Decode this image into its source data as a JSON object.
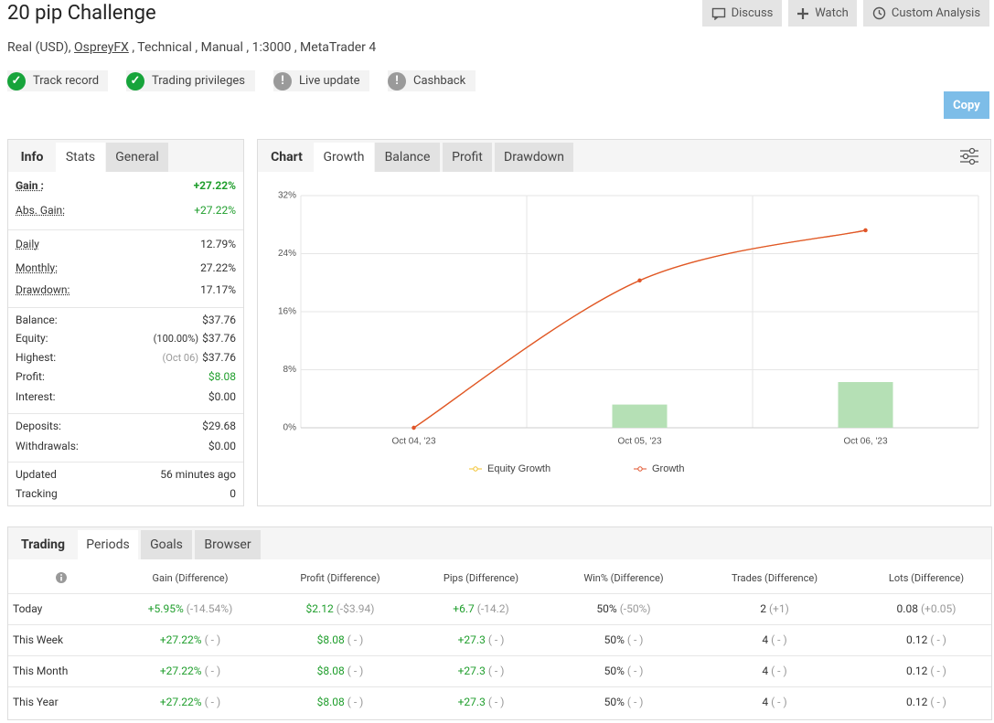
{
  "header": {
    "title": "20 pip Challenge",
    "account": "Real (USD),",
    "broker": "OspreyFX",
    "details": ", Technical , Manual , 1:3000 , MetaTrader 4"
  },
  "actions": [
    "Discuss",
    "Watch",
    "Custom Analysis"
  ],
  "badges": [
    "Track record",
    "Trading privileges",
    "Live update",
    "Cashback"
  ],
  "copy_button": "Copy",
  "info_panel": {
    "tabs": [
      "Info",
      "Stats",
      "General"
    ],
    "groups": [
      [
        {
          "label": "Gain :",
          "value": "+27.22%"
        },
        {
          "label": "Abs. Gain:",
          "value": "+27.22%"
        }
      ],
      [
        {
          "label": "Daily",
          "value": "12.79%"
        },
        {
          "label": "Monthly:",
          "value": "27.22%"
        },
        {
          "label": "Drawdown:",
          "value": "17.17%"
        }
      ],
      [
        {
          "label": "Balance:",
          "value": "$37.76"
        },
        {
          "label": "Equity:",
          "note": "(100.00%)",
          "value": "$37.76"
        },
        {
          "label": "Highest:",
          "note": "(Oct 06)",
          "value": "$37.76"
        },
        {
          "label": "Profit:",
          "value": "$8.08"
        },
        {
          "label": "Interest:",
          "value": "$0.00"
        }
      ],
      [
        {
          "label": "Deposits:",
          "value": "$29.68"
        },
        {
          "label": "Withdrawals:",
          "value": "$0.00"
        }
      ],
      [
        {
          "label": "Updated",
          "value": "56 minutes ago"
        },
        {
          "label": "Tracking",
          "value": "0"
        }
      ]
    ]
  },
  "chart_panel": {
    "tabs": [
      "Chart",
      "Growth",
      "Balance",
      "Profit",
      "Drawdown"
    ]
  },
  "chart_data": {
    "type": "line",
    "categories": [
      "Oct 04, '23",
      "Oct 05, '23",
      "Oct 06, '23"
    ],
    "series": [
      {
        "name": "Equity Growth",
        "color": "#f2c12e",
        "values": [
          0,
          20.3,
          27.22
        ]
      },
      {
        "name": "Growth",
        "color": "#e0532c",
        "values": [
          0,
          20.3,
          27.22
        ]
      }
    ],
    "bars": {
      "color": "#b5e0b5",
      "values": [
        null,
        3.2,
        6.3
      ]
    },
    "ylim": [
      0,
      32
    ],
    "yticks": [
      {
        "value": 0,
        "label": "0%"
      },
      {
        "value": 8,
        "label": "8%"
      },
      {
        "value": 16,
        "label": "16%"
      },
      {
        "value": 24,
        "label": "24%"
      },
      {
        "value": 32,
        "label": "32%"
      }
    ],
    "grid": true
  },
  "periods": {
    "tabs": [
      "Trading",
      "Periods",
      "Goals",
      "Browser"
    ],
    "columns": [
      "Gain (Difference)",
      "Profit (Difference)",
      "Pips (Difference)",
      "Win% (Difference)",
      "Trades (Difference)",
      "Lots (Difference)"
    ],
    "rows": [
      {
        "label": "Today",
        "cells": [
          [
            "+5.95%",
            "(-14.54%)"
          ],
          [
            "$2.12",
            "(-$3.94)"
          ],
          [
            "+6.7",
            "(-14.2)"
          ],
          [
            "50%",
            "(-50%)"
          ],
          [
            "2",
            "(+1)"
          ],
          [
            "0.08",
            "(+0.05)"
          ]
        ]
      },
      {
        "label": "This Week",
        "cells": [
          [
            "+27.22%",
            "( - )"
          ],
          [
            "$8.08",
            "( - )"
          ],
          [
            "+27.3",
            "( - )"
          ],
          [
            "50%",
            "( - )"
          ],
          [
            "4",
            "( - )"
          ],
          [
            "0.12",
            "( - )"
          ]
        ]
      },
      {
        "label": "This Month",
        "cells": [
          [
            "+27.22%",
            "( - )"
          ],
          [
            "$8.08",
            "( - )"
          ],
          [
            "+27.3",
            "( - )"
          ],
          [
            "50%",
            "( - )"
          ],
          [
            "4",
            "( - )"
          ],
          [
            "0.12",
            "( - )"
          ]
        ]
      },
      {
        "label": "This Year",
        "cells": [
          [
            "+27.22%",
            "( - )"
          ],
          [
            "$8.08",
            "( - )"
          ],
          [
            "+27.3",
            "( - )"
          ],
          [
            "50%",
            "( - )"
          ],
          [
            "4",
            "( - )"
          ],
          [
            "0.12",
            "( - )"
          ]
        ]
      }
    ]
  }
}
